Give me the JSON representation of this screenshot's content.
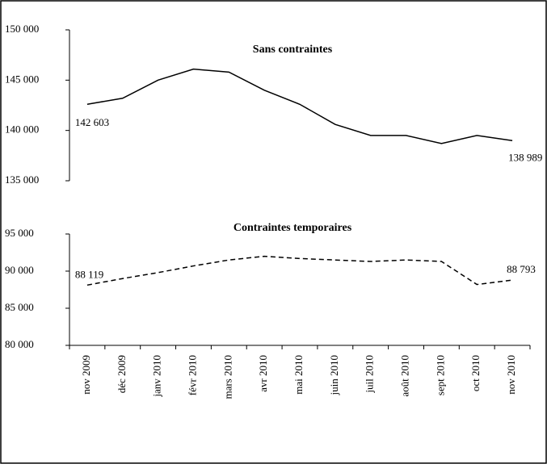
{
  "chart_data": [
    {
      "type": "line",
      "title": "Sans contraintes",
      "ylim": [
        135000,
        150000
      ],
      "yticks": [
        {
          "value": 135000,
          "label": "135 000"
        },
        {
          "value": 140000,
          "label": "140 000"
        },
        {
          "value": 145000,
          "label": "145 000"
        },
        {
          "value": 150000,
          "label": "150 000"
        }
      ],
      "series": [
        {
          "name": "Sans contraintes",
          "color": "#000000",
          "dash": false,
          "values": [
            142603,
            143200,
            145000,
            146100,
            145800,
            144000,
            142600,
            140600,
            139500,
            139500,
            138700,
            139500,
            138989
          ],
          "value_labels": [
            "142 603",
            null,
            null,
            null,
            null,
            null,
            null,
            null,
            null,
            null,
            null,
            null,
            "138 989"
          ]
        }
      ]
    },
    {
      "type": "line",
      "title": "Contraintes temporaires",
      "categories": [
        "nov 2009",
        "déc 2009",
        "janv 2010",
        "févr 2010",
        "mars 2010",
        "avr 2010",
        "mai 2010",
        "juin 2010",
        "juil 2010",
        "août 2010",
        "sept 2010",
        "oct 2010",
        "nov 2010"
      ],
      "ylim": [
        80000,
        95000
      ],
      "yticks": [
        {
          "value": 80000,
          "label": "80 000"
        },
        {
          "value": 85000,
          "label": "85 000"
        },
        {
          "value": 90000,
          "label": "90 000"
        },
        {
          "value": 95000,
          "label": "95 000"
        }
      ],
      "series": [
        {
          "name": "Contraintes temporaires",
          "color": "#000000",
          "dash": true,
          "values": [
            88119,
            89000,
            89800,
            90700,
            91500,
            92000,
            91700,
            91500,
            91300,
            91500,
            91300,
            88200,
            88793
          ],
          "value_labels": [
            "88 119",
            null,
            null,
            null,
            null,
            null,
            null,
            null,
            null,
            null,
            null,
            null,
            "88 793"
          ]
        }
      ]
    }
  ]
}
